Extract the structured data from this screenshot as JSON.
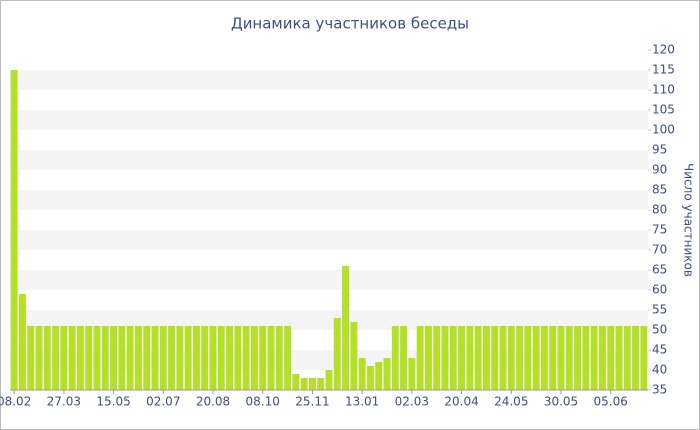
{
  "chart_data": {
    "type": "bar",
    "title": "Динамика участников беседы",
    "y_label": "Число участников",
    "categories": [
      "08.02",
      null,
      null,
      null,
      null,
      null,
      "27.03",
      null,
      null,
      null,
      null,
      null,
      "15.05",
      null,
      null,
      null,
      null,
      null,
      "02.07",
      null,
      null,
      null,
      null,
      null,
      "20.08",
      null,
      null,
      null,
      null,
      null,
      "08.10",
      null,
      null,
      null,
      null,
      null,
      "25.11",
      null,
      null,
      null,
      null,
      null,
      "13.01",
      null,
      null,
      null,
      null,
      null,
      "02.03",
      null,
      null,
      null,
      null,
      null,
      "20.04",
      null,
      null,
      null,
      null,
      null,
      "24.05",
      null,
      null,
      null,
      null,
      null,
      "30.05",
      null,
      null,
      null,
      null,
      null,
      "05.06",
      null,
      null,
      null,
      null
    ],
    "values": [
      115,
      59,
      51,
      51,
      51,
      51,
      51,
      51,
      51,
      51,
      51,
      51,
      51,
      51,
      51,
      51,
      51,
      51,
      51,
      51,
      51,
      51,
      51,
      51,
      51,
      51,
      51,
      51,
      51,
      51,
      51,
      51,
      51,
      51,
      39,
      38,
      38,
      38,
      40,
      53,
      66,
      52,
      43,
      41,
      42,
      43,
      51,
      51,
      43,
      51,
      51,
      51,
      51,
      51,
      51,
      51,
      51,
      51,
      51,
      51,
      51,
      51,
      51,
      51,
      51,
      51,
      51,
      51,
      51,
      51,
      51,
      51,
      51,
      51,
      51,
      51,
      51
    ],
    "color": "#b5e02a",
    "ylim": [
      35,
      120
    ],
    "yticks": [
      35,
      40,
      45,
      50,
      55,
      60,
      65,
      70,
      75,
      80,
      85,
      90,
      95,
      100,
      105,
      110,
      115,
      120
    ],
    "grid": true
  }
}
